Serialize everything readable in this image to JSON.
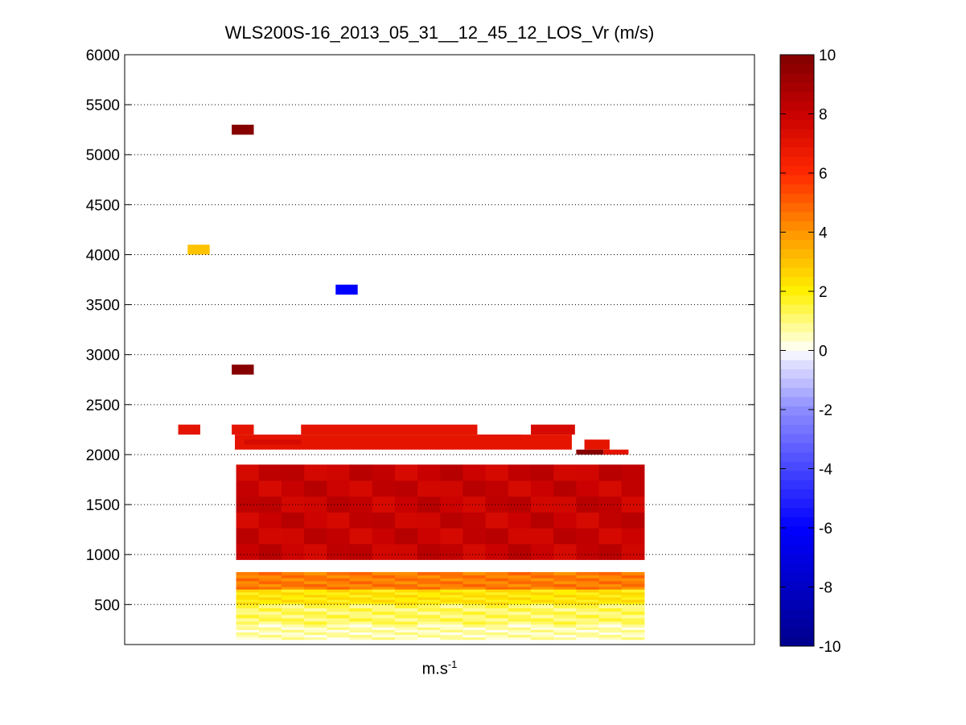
{
  "chart_data": {
    "type": "heatmap",
    "title": "WLS200S-16_2013_05_31__12_45_12_LOS_Vr (m/s)",
    "xlabel_base": "m.s",
    "xlabel_exp": "-1",
    "ylabel": "",
    "ylim": [
      100,
      6000
    ],
    "yticks": [
      500,
      1000,
      1500,
      2000,
      2500,
      3000,
      3500,
      4000,
      4500,
      5000,
      5500,
      6000
    ],
    "ygrid": true,
    "colorbar": {
      "lim": [
        -10,
        10
      ],
      "ticks": [
        -10,
        -8,
        -6,
        -4,
        -2,
        0,
        2,
        4,
        6,
        8,
        10
      ],
      "colormap": "blue-white-red (jet-like diverging)"
    },
    "cells": [
      {
        "col": [
          0.17,
          0.205
        ],
        "alt": [
          5200,
          5300
        ],
        "v": 9.8
      },
      {
        "col": [
          0.1,
          0.135
        ],
        "alt": [
          4000,
          4100
        ],
        "v": 3
      },
      {
        "col": [
          0.335,
          0.37
        ],
        "alt": [
          3600,
          3700
        ],
        "v": -6
      },
      {
        "col": [
          0.17,
          0.205
        ],
        "alt": [
          2800,
          2900
        ],
        "v": 9.8
      },
      {
        "col": [
          0.17,
          0.205
        ],
        "alt": [
          2200,
          2300
        ],
        "v": 7
      },
      {
        "col": [
          0.085,
          0.12
        ],
        "alt": [
          2200,
          2300
        ],
        "v": 7
      },
      {
        "col": [
          0.28,
          0.56
        ],
        "alt": [
          2200,
          2300
        ],
        "v": 7
      },
      {
        "col": [
          0.645,
          0.715
        ],
        "alt": [
          2200,
          2300
        ],
        "v": 7.5
      },
      {
        "col": [
          0.175,
          0.71
        ],
        "alt": [
          2050,
          2200
        ],
        "v": 7
      },
      {
        "col": [
          0.19,
          0.28
        ],
        "alt": [
          2100,
          2150
        ],
        "v": 7.5
      },
      {
        "col": [
          0.73,
          0.77
        ],
        "alt": [
          2050,
          2150
        ],
        "v": 7
      },
      {
        "col": [
          0.56,
          0.63
        ],
        "alt": [
          2100,
          2200
        ],
        "v": 7
      },
      {
        "col": [
          0.717,
          0.76
        ],
        "alt": [
          2000,
          2050
        ],
        "v": 9.8
      },
      {
        "col": [
          0.76,
          0.8
        ],
        "alt": [
          2000,
          2050
        ],
        "v": 7
      }
    ],
    "bands": [
      {
        "alt": [
          950,
          1900
        ],
        "v": 8
      },
      {
        "alt": [
          650,
          825
        ],
        "v": 4.5
      },
      {
        "alt": [
          500,
          650
        ],
        "v": 2.2
      },
      {
        "alt": [
          300,
          500
        ],
        "v": 1.2
      },
      {
        "alt": [
          150,
          300
        ],
        "v": 0.6
      }
    ],
    "x_data_extent": [
      0.177,
      0.825
    ]
  }
}
